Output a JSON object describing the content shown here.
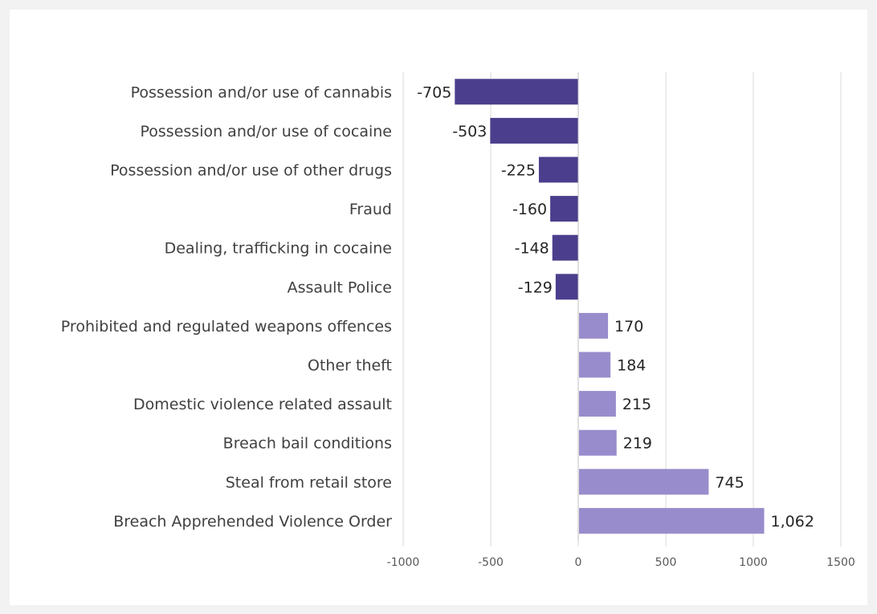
{
  "chart_data": {
    "type": "bar",
    "orientation": "horizontal",
    "title": "",
    "xlabel": "",
    "ylabel": "",
    "categories": [
      "Possession and/or use of cannabis",
      "Possession and/or use of cocaine",
      "Possession and/or use of other drugs",
      "Fraud",
      "Dealing, trafficking in cocaine",
      "Assault Police",
      "Prohibited and regulated weapons offences",
      "Other theft",
      "Domestic violence related assault",
      "Breach bail conditions",
      "Steal from retail store",
      "Breach Apprehended Violence Order"
    ],
    "values": [
      -705,
      -503,
      -225,
      -160,
      -148,
      -129,
      170,
      184,
      215,
      219,
      745,
      1062
    ],
    "data_labels": [
      "-705",
      "-503",
      "-225",
      "-160",
      "-148",
      "-129",
      "170",
      "184",
      "215",
      "219",
      "745",
      "1,062"
    ],
    "xlim": [
      -1000,
      1500
    ],
    "xticks": [
      -1000,
      -500,
      0,
      500,
      1000,
      1500
    ],
    "xtick_labels": [
      "-1000",
      "-500",
      "0",
      "500",
      "1000",
      "1500"
    ],
    "grid": "vertical",
    "legend": "none",
    "colors": {
      "negative": "#4b3e8c",
      "positive": "#998ccc",
      "grid": "#d9d9d9",
      "axis": "#bfbfbf"
    }
  }
}
